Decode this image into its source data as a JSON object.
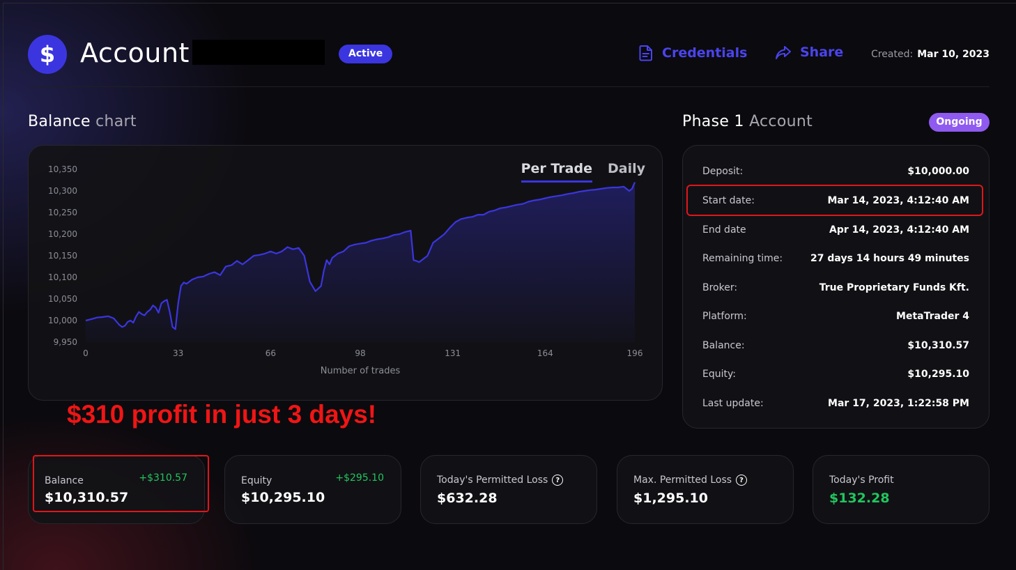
{
  "header": {
    "logo_symbol": "$",
    "title": "Account",
    "status_badge": "Active",
    "credentials_label": "Credentials",
    "share_label": "Share",
    "created_label": "Created:",
    "created_value": "Mar 10, 2023"
  },
  "balance_section": {
    "title_main": "Balance",
    "title_dim": "chart",
    "tabs": [
      "Per Trade",
      "Daily"
    ],
    "active_tab": "Per Trade"
  },
  "chart_data": {
    "type": "area",
    "xlabel": "Number of trades",
    "ylabel": "",
    "xlim": [
      0,
      196
    ],
    "ylim": [
      9950,
      10350
    ],
    "x_ticks": [
      0,
      33,
      66,
      98,
      131,
      164,
      196
    ],
    "y_ticks": [
      10350,
      10300,
      10250,
      10200,
      10150,
      10100,
      10050,
      10000,
      9950
    ],
    "y_tick_labels": [
      "10,350",
      "10,300",
      "10,250",
      "10,200",
      "10,150",
      "10,100",
      "10,050",
      "10,000",
      "9,950"
    ],
    "line_color": "#3b35e0",
    "series": [
      {
        "x": [
          0,
          2,
          4,
          6,
          8,
          10,
          12,
          13,
          14,
          15,
          16,
          17,
          18,
          19,
          20,
          21,
          22,
          23,
          24,
          25,
          26,
          27,
          28,
          29,
          30,
          31,
          32,
          33,
          34,
          35,
          36,
          38,
          40,
          42,
          44,
          46,
          48,
          50,
          52,
          54,
          56,
          58,
          60,
          62,
          64,
          66,
          68,
          70,
          72,
          74,
          76,
          78,
          80,
          82,
          84,
          85,
          86,
          87,
          88,
          89,
          90,
          92,
          94,
          96,
          98,
          100,
          102,
          104,
          106,
          108,
          110,
          112,
          114,
          116,
          117,
          118,
          119,
          120,
          122,
          124,
          126,
          128,
          130,
          132,
          134,
          136,
          138,
          140,
          142,
          144,
          146,
          148,
          150,
          152,
          154,
          156,
          158,
          160,
          162,
          164,
          166,
          168,
          170,
          172,
          174,
          176,
          178,
          180,
          182,
          184,
          186,
          188,
          190,
          192,
          194,
          195,
          196
        ],
        "y": [
          10000,
          10003,
          10007,
          10008,
          10010,
          10005,
          9990,
          9985,
          9988,
          9997,
          10000,
          9995,
          10010,
          10020,
          10015,
          10012,
          10020,
          10025,
          10035,
          10030,
          10018,
          10040,
          10045,
          10048,
          10020,
          9985,
          9980,
          10040,
          10080,
          10088,
          10085,
          10095,
          10100,
          10102,
          10108,
          10112,
          10105,
          10125,
          10128,
          10138,
          10130,
          10140,
          10150,
          10152,
          10155,
          10160,
          10155,
          10160,
          10170,
          10165,
          10168,
          10150,
          10090,
          10068,
          10080,
          10115,
          10140,
          10130,
          10145,
          10150,
          10155,
          10160,
          10172,
          10176,
          10178,
          10180,
          10185,
          10188,
          10190,
          10193,
          10198,
          10200,
          10205,
          10208,
          10140,
          10138,
          10135,
          10140,
          10150,
          10180,
          10190,
          10200,
          10215,
          10228,
          10235,
          10238,
          10240,
          10245,
          10245,
          10252,
          10255,
          10260,
          10262,
          10265,
          10268,
          10270,
          10275,
          10278,
          10280,
          10283,
          10286,
          10288,
          10290,
          10293,
          10295,
          10298,
          10300,
          10302,
          10303,
          10305,
          10307,
          10308,
          10308,
          10310,
          10300,
          10305,
          10320
        ]
      }
    ]
  },
  "phase_section": {
    "title_main": "Phase 1",
    "title_dim": "Account",
    "status_badge": "Ongoing",
    "rows": [
      {
        "label": "Deposit:",
        "value": "$10,000.00"
      },
      {
        "label": "Start date:",
        "value": "Mar 14, 2023, 4:12:40 AM"
      },
      {
        "label": "End date",
        "value": "Apr 14, 2023, 4:12:40 AM"
      },
      {
        "label": "Remaining time:",
        "value": "27 days 14 hours 49 minutes"
      },
      {
        "label": "Broker:",
        "value": "True Proprietary Funds Kft."
      },
      {
        "label": "Platform:",
        "value": "MetaTrader 4"
      },
      {
        "label": "Balance:",
        "value": "$10,310.57"
      },
      {
        "label": "Equity:",
        "value": "$10,295.10"
      },
      {
        "label": "Last update:",
        "value": "Mar 17, 2023, 1:22:58 PM"
      }
    ]
  },
  "promo_text": "$310 profit in just 3 days!",
  "stats": [
    {
      "label": "Balance",
      "value": "$10,310.57",
      "delta": "+$310.57"
    },
    {
      "label": "Equity",
      "value": "$10,295.10",
      "delta": "+$295.10"
    },
    {
      "label": "Today's Permitted Loss",
      "value": "$632.28"
    },
    {
      "label": "Max. Permitted Loss",
      "value": "$1,295.10"
    },
    {
      "label": "Today's Profit",
      "value": "$132.28"
    }
  ],
  "colors": {
    "accent": "#3b35e0",
    "ongoing": "#8f5af0",
    "positive": "#22c55e",
    "highlight": "#e0161a"
  },
  "icons": {
    "credentials": "document-icon",
    "share": "share-arrow-icon",
    "help": "question-circle-icon"
  }
}
